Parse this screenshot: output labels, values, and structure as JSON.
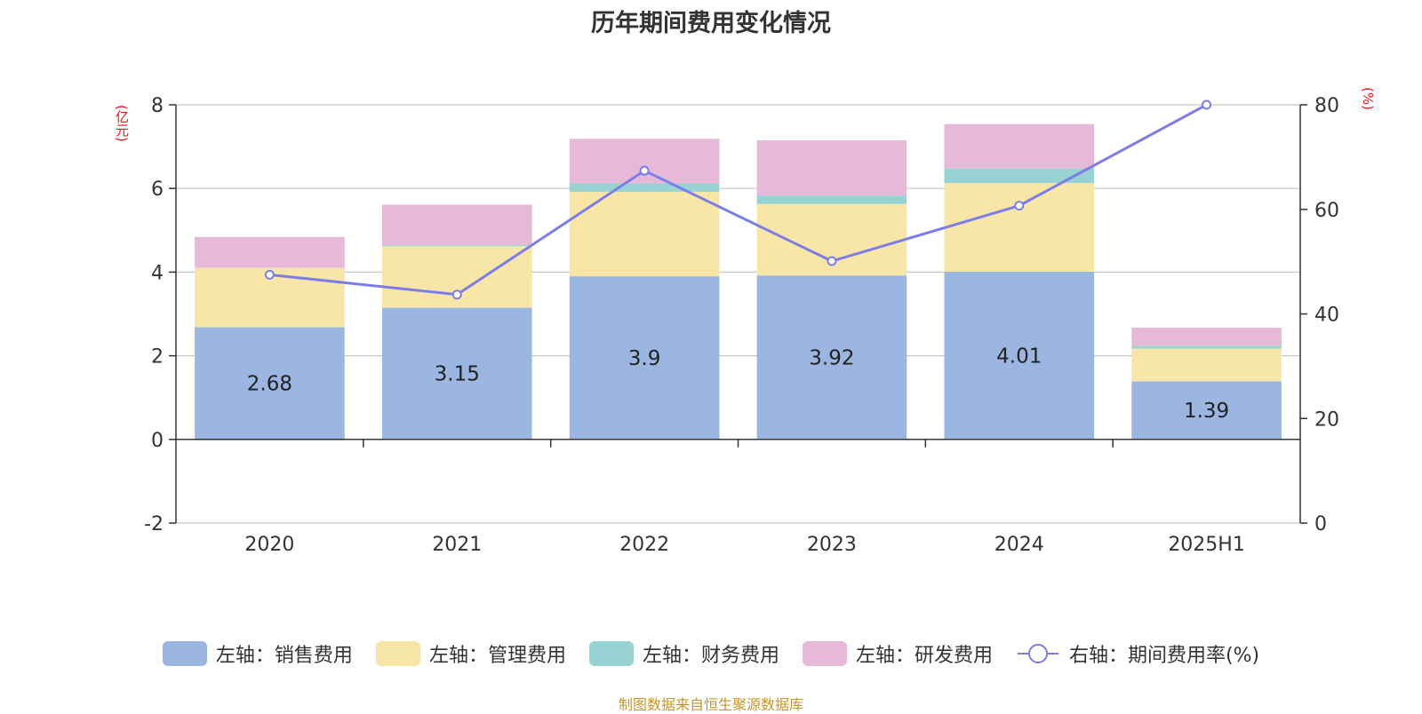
{
  "title": "历年期间费用变化情况",
  "source_note": "制图数据来自恒生聚源数据库",
  "left_axis_unit": "(亿元)",
  "right_axis_unit": "(%)",
  "legend": [
    {
      "label": "左轴：销售费用",
      "color": "#9bb7e1",
      "kind": "bar"
    },
    {
      "label": "左轴：管理费用",
      "color": "#f8e6a8",
      "kind": "bar"
    },
    {
      "label": "左轴：财务费用",
      "color": "#98d3d3",
      "kind": "bar"
    },
    {
      "label": "左轴：研发费用",
      "color": "#e7b9d9",
      "kind": "bar"
    },
    {
      "label": "右轴：期间费用率(%)",
      "color": "#7b7de8",
      "kind": "line"
    }
  ],
  "chart_data": {
    "type": "bar",
    "stacked": true,
    "categories": [
      "2020",
      "2021",
      "2022",
      "2023",
      "2024",
      "2025H1"
    ],
    "y_left": {
      "min": -2,
      "max": 8,
      "ticks": [
        -2,
        0,
        2,
        4,
        6,
        8
      ]
    },
    "y_right": {
      "min": 0,
      "max": 80,
      "ticks": [
        0,
        20,
        40,
        60,
        80
      ]
    },
    "grid": true,
    "legend_position": "bottom",
    "series": [
      {
        "name": "左轴：销售费用",
        "axis": "left",
        "type": "bar",
        "color": "#9bb7e1",
        "values": [
          2.68,
          3.15,
          3.9,
          3.92,
          4.01,
          1.39
        ],
        "labels": [
          "2.68",
          "3.15",
          "3.9",
          "3.92",
          "4.01",
          "1.39"
        ]
      },
      {
        "name": "左轴：管理费用",
        "axis": "left",
        "type": "bar",
        "color": "#f8e6a8",
        "values": [
          1.42,
          1.47,
          2.02,
          1.71,
          2.12,
          0.78
        ]
      },
      {
        "name": "左轴：财务费用",
        "axis": "left",
        "type": "bar",
        "color": "#98d3d3",
        "values": [
          -0.02,
          0.03,
          0.2,
          0.2,
          0.35,
          0.07
        ]
      },
      {
        "name": "左轴：研发费用",
        "axis": "left",
        "type": "bar",
        "color": "#e7b9d9",
        "values": [
          0.74,
          0.96,
          1.07,
          1.32,
          1.06,
          0.43
        ]
      },
      {
        "name": "右轴：期间费用率(%)",
        "axis": "right",
        "type": "line",
        "color": "#7b7de8",
        "values": [
          47.5,
          43.7,
          67.4,
          50.1,
          60.7,
          80
        ]
      }
    ]
  }
}
